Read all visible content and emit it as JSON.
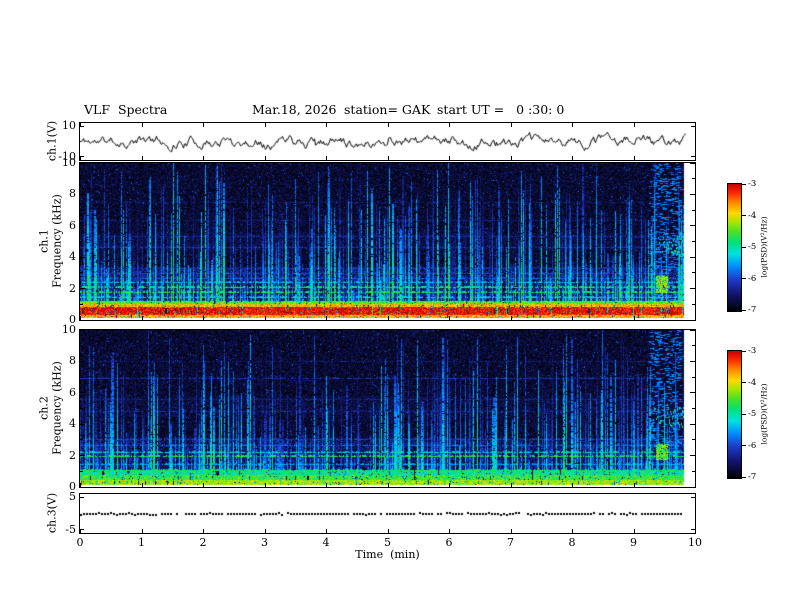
{
  "header": {
    "title": "VLF  Spectra",
    "date": "Mar.18, 2026",
    "station": "station= GAK",
    "start_ut": "start UT =   0 :30: 0"
  },
  "axes": {
    "time": {
      "label": "Time  (min)",
      "ticks": [
        "0",
        "1",
        "2",
        "3",
        "4",
        "5",
        "6",
        "7",
        "8",
        "9",
        "10"
      ]
    },
    "freq": {
      "label": "Frequency (kHz)",
      "major_ticks": [
        "10",
        "8",
        "6",
        "4",
        "2",
        "0"
      ]
    },
    "wave1": {
      "channel": "ch.1(V)",
      "tick_top": "10",
      "tick_bottom": "-10"
    },
    "spec1": {
      "channel": "ch.1"
    },
    "spec2": {
      "channel": "ch.2"
    },
    "wave3": {
      "channel": "ch.3(V)",
      "tick_top": "5",
      "tick_bottom": "-5"
    }
  },
  "colorbar": {
    "label": "log(PSD)(V²/Hz)",
    "ticks": [
      "-3",
      "-4",
      "-5",
      "-6",
      "-7"
    ],
    "range": [
      -7,
      -3
    ]
  },
  "chart_data": [
    {
      "type": "line",
      "name": "ch1_waveform",
      "channel": "ch.1(V)",
      "xlim_min": [
        0,
        10
      ],
      "ylim_volts": [
        -12,
        12
      ],
      "ytick_volts": [
        10,
        -10
      ],
      "mean_v": 0,
      "rms_v": 1.6,
      "data_end_min": 9.85,
      "seed": 11,
      "color": "#000000",
      "description": "broadband noisy voltage trace oscillating about 0 V, excursions roughly ±3 V"
    },
    {
      "type": "heatmap",
      "name": "ch1_spectrogram",
      "channel": "ch.1",
      "xlim_min": [
        0,
        10
      ],
      "ylim_khz": [
        0,
        10
      ],
      "zlim_log_psd": [
        -7,
        -3
      ],
      "colormap": "jet",
      "seed": 42,
      "data_end_min": 9.82,
      "background_level": [
        -7.0,
        -6.45
      ],
      "streaks": {
        "count": 1000,
        "level_range": [
          -5.9,
          -4.3
        ],
        "tall_fraction": 0.14
      },
      "bands": [
        {
          "f_range": [
            0.12,
            0.35
          ],
          "level": -3.75
        },
        {
          "f_range": [
            0.35,
            0.78
          ],
          "level": -3.15
        },
        {
          "f_range": [
            0.78,
            0.97
          ],
          "level": -3.85
        },
        {
          "f_range": [
            0.97,
            1.18
          ],
          "level": -4.55
        }
      ],
      "hazes": [
        {
          "f_range": [
            1.2,
            3.35
          ],
          "level": -6.25
        },
        {
          "f_range": [
            4.4,
            5.5
          ],
          "level": -6.6
        }
      ],
      "lines": [
        {
          "f": 1.38,
          "level": -5.15
        },
        {
          "f": 1.72,
          "level": -4.8
        },
        {
          "f": 2.02,
          "level": -4.7
        },
        {
          "f": 2.38,
          "level": -5.35
        },
        {
          "f": 2.62,
          "level": -5.85
        },
        {
          "f": 2.95,
          "level": -5.95
        },
        {
          "f": 3.3,
          "level": -6.2
        },
        {
          "f": 4.62,
          "level": -6.15
        },
        {
          "f": 5.3,
          "level": -6.25
        },
        {
          "f": 6.35,
          "level": -6.4
        },
        {
          "f": 7.5,
          "level": -6.45
        }
      ],
      "features": [
        {
          "type": "blob",
          "t_min": 9.36,
          "t_width": 0.18,
          "f_range": [
            1.75,
            2.75
          ],
          "level": -4.4
        },
        {
          "type": "squiggle",
          "t_min": 9.3,
          "f_center": 4.7,
          "level": -5.0
        },
        {
          "type": "dashes",
          "t_range": [
            9.25,
            9.78
          ],
          "level": -5.7
        }
      ]
    },
    {
      "type": "heatmap",
      "name": "ch2_spectrogram",
      "channel": "ch.2",
      "xlim_min": [
        0,
        10
      ],
      "ylim_khz": [
        0,
        10
      ],
      "zlim_log_psd": [
        -7,
        -3
      ],
      "colormap": "jet",
      "seed": 77,
      "data_end_min": 9.82,
      "background_level": [
        -7.0,
        -6.45
      ],
      "streaks": {
        "count": 900,
        "level_range": [
          -5.9,
          -4.4
        ],
        "tall_fraction": 0.13
      },
      "bands": [
        {
          "f_range": [
            0.12,
            0.4
          ],
          "level": -4.3
        },
        {
          "f_range": [
            0.4,
            0.72
          ],
          "level": -4.7
        },
        {
          "f_range": [
            0.72,
            1.02
          ],
          "level": -5.0
        }
      ],
      "hazes": [
        {
          "f_range": [
            1.05,
            3.1
          ],
          "level": -6.3
        },
        {
          "f_range": [
            4.5,
            5.8
          ],
          "level": -6.65
        }
      ],
      "lines": [
        {
          "f": 1.05,
          "level": -4.85
        },
        {
          "f": 1.38,
          "level": -5.5
        },
        {
          "f": 1.9,
          "level": -4.75
        },
        {
          "f": 2.2,
          "level": -5.15
        },
        {
          "f": 2.6,
          "level": -5.8
        },
        {
          "f": 3.0,
          "level": -6.05
        },
        {
          "f": 4.8,
          "level": -6.25
        },
        {
          "f": 5.6,
          "level": -6.35
        },
        {
          "f": 6.9,
          "level": -6.15
        },
        {
          "f": 8.0,
          "level": -6.45
        }
      ],
      "features": [
        {
          "type": "blob",
          "t_min": 9.36,
          "t_width": 0.18,
          "f_range": [
            1.7,
            2.7
          ],
          "level": -4.5
        },
        {
          "type": "squiggle",
          "t_min": 9.3,
          "f_center": 4.4,
          "level": -5.0
        },
        {
          "type": "dashes",
          "t_range": [
            9.25,
            9.78
          ],
          "level": -5.7
        }
      ]
    },
    {
      "type": "line",
      "name": "ch3_waveform",
      "channel": "ch.3(V)",
      "xlim_min": [
        0,
        10
      ],
      "ylim_volts": [
        -6,
        6
      ],
      "ytick_volts": [
        5,
        -5
      ],
      "constant_value": 0,
      "style": "dotted",
      "data_end_min": 9.82,
      "seed": 7,
      "color": "#000000",
      "description": "flat dotted trace at 0 V for the full record"
    }
  ]
}
